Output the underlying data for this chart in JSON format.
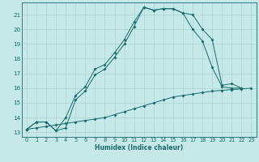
{
  "xlabel": "Humidex (Indice chaleur)",
  "xlim": [
    -0.5,
    23.5
  ],
  "ylim": [
    12.7,
    21.8
  ],
  "yticks": [
    13,
    14,
    15,
    16,
    17,
    18,
    19,
    20,
    21
  ],
  "xticks": [
    0,
    1,
    2,
    3,
    4,
    5,
    6,
    7,
    8,
    9,
    10,
    11,
    12,
    13,
    14,
    15,
    16,
    17,
    18,
    19,
    20,
    21,
    22,
    23
  ],
  "bg_color": "#c5e8e8",
  "grid_color": "#b0d4d4",
  "line_color": "#1a6b6b",
  "line1_x": [
    0,
    1,
    2,
    3,
    4,
    5,
    6,
    7,
    8,
    9,
    10,
    11,
    12,
    13,
    14,
    15,
    16,
    17,
    18,
    19,
    20,
    21,
    22
  ],
  "line1_y": [
    13.2,
    13.7,
    13.7,
    13.1,
    14.0,
    15.5,
    16.1,
    17.3,
    17.6,
    18.4,
    19.3,
    20.5,
    21.5,
    21.3,
    21.4,
    21.4,
    21.1,
    20.0,
    19.2,
    17.4,
    16.1,
    16.0,
    16.0
  ],
  "line2_x": [
    0,
    1,
    2,
    3,
    4,
    5,
    6,
    7,
    8,
    9,
    10,
    11,
    12,
    13,
    14,
    15,
    16,
    17,
    18,
    19,
    20,
    21,
    22,
    23
  ],
  "line2_y": [
    13.2,
    13.3,
    13.4,
    13.5,
    13.6,
    13.7,
    13.8,
    13.9,
    14.0,
    14.2,
    14.4,
    14.6,
    14.8,
    15.0,
    15.2,
    15.4,
    15.5,
    15.6,
    15.7,
    15.8,
    15.85,
    15.9,
    15.95,
    16.0
  ],
  "line3_x": [
    0,
    1,
    2,
    3,
    4,
    5,
    6,
    7,
    8,
    9,
    10,
    11,
    12,
    13,
    14,
    15,
    16,
    17,
    18,
    19,
    20,
    21,
    22
  ],
  "line3_y": [
    13.2,
    13.7,
    13.7,
    13.1,
    13.3,
    15.2,
    15.8,
    16.9,
    17.3,
    18.1,
    19.0,
    20.2,
    21.5,
    21.3,
    21.4,
    21.4,
    21.1,
    21.0,
    20.0,
    19.3,
    16.2,
    16.3,
    16.0
  ]
}
